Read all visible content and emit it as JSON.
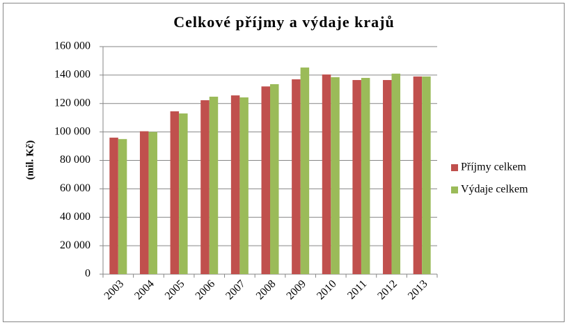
{
  "chart_data": {
    "type": "bar",
    "title": "Celkové příjmy a výdaje krajů",
    "y_label": "(mil. Kč)",
    "categories": [
      "2003",
      "2004",
      "2005",
      "2006",
      "2007",
      "2008",
      "2009",
      "2010",
      "2011",
      "2012",
      "2013"
    ],
    "series": [
      {
        "name": "Příjmy celkem",
        "color": "#c0504d",
        "values": [
          96000,
          100500,
          114500,
          122300,
          125700,
          132000,
          137000,
          140400,
          136500,
          136500,
          139000
        ]
      },
      {
        "name": "Výdaje celkem",
        "color": "#9bbb59",
        "values": [
          95000,
          100000,
          113000,
          124800,
          124300,
          133600,
          145300,
          138500,
          138000,
          141000,
          139000
        ]
      }
    ],
    "ylim": [
      0,
      160000
    ],
    "yticks": [
      {
        "value": 0,
        "label": "0"
      },
      {
        "value": 20000,
        "label": "20 000"
      },
      {
        "value": 40000,
        "label": "40 000"
      },
      {
        "value": 60000,
        "label": "60 000"
      },
      {
        "value": 80000,
        "label": "80 000"
      },
      {
        "value": 100000,
        "label": "100 000"
      },
      {
        "value": 120000,
        "label": "120 000"
      },
      {
        "value": 140000,
        "label": "140 000"
      },
      {
        "value": 160000,
        "label": "160 000"
      }
    ],
    "grid": true,
    "legend": "right"
  }
}
